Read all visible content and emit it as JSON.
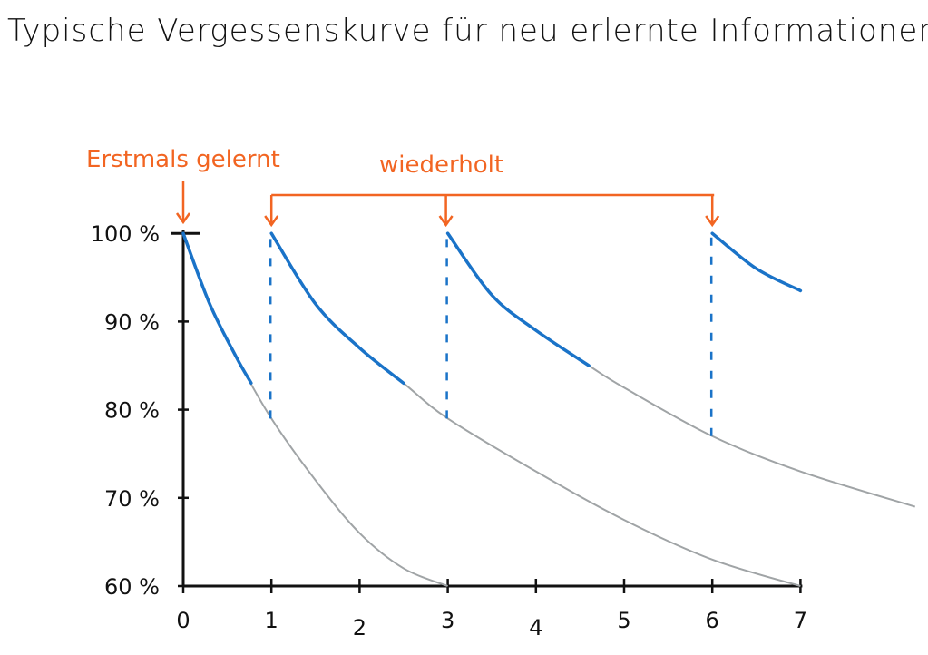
{
  "chart_data": {
    "type": "line",
    "title": "Typische Vergessenskurve für neu erlernte Informationen",
    "xlabel": "",
    "ylabel": "",
    "x_ticks": [
      "0",
      "1",
      "2",
      "3",
      "4",
      "5",
      "6",
      "7"
    ],
    "y_ticks": [
      "60 %",
      "70 %",
      "80 %",
      "90 %",
      "100 %"
    ],
    "xlim": [
      0,
      8.3
    ],
    "ylim": [
      60,
      100
    ],
    "grid": false,
    "colors": {
      "curve": "#a0a4a6",
      "retained": "#1a73c8",
      "annotation": "#f26522",
      "axis": "#111111"
    },
    "series": [
      {
        "name": "curve-1",
        "points": [
          [
            0,
            100
          ],
          [
            0.3,
            92
          ],
          [
            0.6,
            86
          ],
          [
            1,
            79
          ],
          [
            1.5,
            72
          ],
          [
            2,
            66
          ],
          [
            2.5,
            62
          ],
          [
            3,
            60
          ]
        ],
        "highlight_until": 0.77
      },
      {
        "name": "curve-2",
        "points": [
          [
            1,
            100
          ],
          [
            1.5,
            92
          ],
          [
            2,
            87
          ],
          [
            2.5,
            83
          ],
          [
            3,
            79
          ],
          [
            4,
            73
          ],
          [
            5,
            67.5
          ],
          [
            6,
            63
          ],
          [
            7,
            60
          ]
        ],
        "highlight_until": 2.5
      },
      {
        "name": "curve-3",
        "points": [
          [
            3,
            100
          ],
          [
            3.5,
            93
          ],
          [
            4,
            89
          ],
          [
            4.6,
            85
          ],
          [
            5,
            82.5
          ],
          [
            6,
            77
          ],
          [
            7,
            73
          ],
          [
            8.3,
            69
          ]
        ],
        "highlight_until": 4.6
      },
      {
        "name": "curve-4",
        "points": [
          [
            6,
            100
          ],
          [
            6.5,
            96
          ],
          [
            7,
            93.5
          ]
        ],
        "highlight_until": 7
      }
    ],
    "repetitions": [
      1,
      3,
      6
    ],
    "annotations": {
      "first_learned": {
        "label": "Erstmals gelernt",
        "x": 0
      },
      "repeated": {
        "label": "wiederholt",
        "x": [
          1,
          3,
          6
        ]
      }
    }
  }
}
